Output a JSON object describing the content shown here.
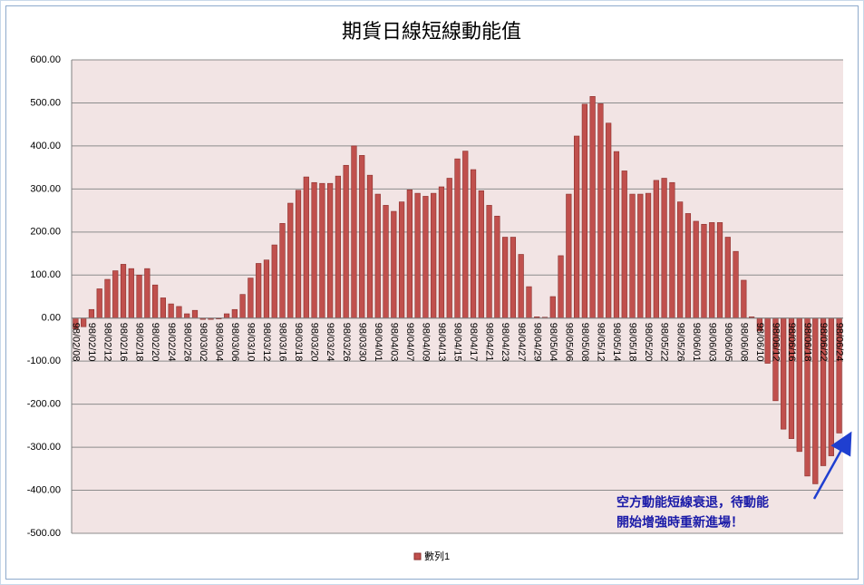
{
  "chart_data": {
    "type": "bar",
    "title": "期貨日線短線動能值",
    "categories": [
      "98/02/08",
      null,
      "98/02/10",
      null,
      "98/02/12",
      null,
      "98/02/16",
      null,
      "98/02/18",
      null,
      "98/02/20",
      null,
      "98/02/24",
      null,
      "98/02/26",
      null,
      "98/03/02",
      null,
      "98/03/04",
      null,
      "98/03/06",
      null,
      "98/03/10",
      null,
      "98/03/12",
      null,
      "98/03/16",
      null,
      "98/03/18",
      null,
      "98/03/20",
      null,
      "98/03/24",
      null,
      "98/03/26",
      null,
      "98/03/30",
      null,
      "98/04/01",
      null,
      "98/04/03",
      null,
      "98/04/07",
      null,
      "98/04/09",
      null,
      "98/04/13",
      null,
      "98/04/15",
      null,
      "98/04/17",
      null,
      "98/04/21",
      null,
      "98/04/23",
      null,
      "98/04/27",
      null,
      "98/04/29",
      null,
      "98/05/04",
      null,
      "98/05/06",
      null,
      "98/05/08",
      null,
      "98/05/12",
      null,
      "98/05/14",
      null,
      "98/05/18",
      null,
      "98/05/20",
      null,
      "98/05/22",
      null,
      "98/05/26",
      null,
      "98/06/01",
      null,
      "98/06/03",
      null,
      "98/06/05",
      null,
      "98/06/08",
      null,
      "98/06/10",
      null,
      "98/06/12",
      null,
      "98/06/16",
      null,
      "98/06/18",
      null,
      "98/06/22",
      null,
      "98/06/24"
    ],
    "series": [
      {
        "name": "數列1",
        "color": "#c0504d",
        "values": [
          -25,
          -20,
          20,
          68,
          90,
          110,
          125,
          115,
          100,
          115,
          77,
          47,
          33,
          27,
          10,
          18,
          -3,
          -3,
          -2,
          10,
          20,
          55,
          93,
          127,
          135,
          170,
          220,
          267,
          297,
          328,
          315,
          313,
          313,
          330,
          355,
          400,
          378,
          332,
          288,
          262,
          248,
          270,
          298,
          290,
          283,
          290,
          305,
          325,
          370,
          388,
          345,
          296,
          262,
          237,
          188,
          188,
          148,
          73,
          3,
          2,
          50,
          145,
          288,
          423,
          497,
          515,
          498,
          453,
          387,
          342,
          288,
          288,
          290,
          320,
          325,
          315,
          270,
          243,
          225,
          218,
          222,
          222,
          188,
          155,
          88,
          3,
          -30,
          -105,
          -192,
          -258,
          -280,
          -310,
          -367,
          -385,
          -343,
          -320,
          -267
        ]
      }
    ],
    "ylim": [
      -500,
      600
    ],
    "yticks": [
      {
        "value": -500,
        "label": "-500.00"
      },
      {
        "value": -400,
        "label": "-400.00"
      },
      {
        "value": -300,
        "label": "-300.00"
      },
      {
        "value": -200,
        "label": "-200.00"
      },
      {
        "value": -100,
        "label": "-100.00"
      },
      {
        "value": 0,
        "label": "0.00"
      },
      {
        "value": 100,
        "label": "100.00"
      },
      {
        "value": 200,
        "label": "200.00"
      },
      {
        "value": 300,
        "label": "300.00"
      },
      {
        "value": 400,
        "label": "400.00"
      },
      {
        "value": 500,
        "label": "500.00"
      },
      {
        "value": 600,
        "label": "600.00"
      }
    ],
    "grid": true,
    "legend": "bottom",
    "annotation": [
      "空方動能短線衰退，待動能",
      "開始增強時重新進場！"
    ]
  }
}
